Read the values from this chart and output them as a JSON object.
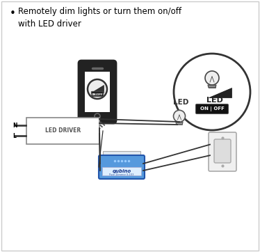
{
  "title_bullet": "•",
  "title_text": "Remotely dim lights or turn them on/off\nwith LED driver",
  "bg_color": "#ffffff",
  "border_color": "#cccccc",
  "text_color": "#222222",
  "led_label": "LED",
  "led_driver_label": "LED DRIVER",
  "on_off_label": "ON | OFF",
  "n_label": "N",
  "l_label": "L",
  "qubino_label": "qubino",
  "qubino_sub": "Push Dimmer S-103",
  "phone_body_color": "#222222",
  "phone_screen_color": "#ffffff",
  "wire_color": "#333333",
  "driver_box_color": "#ffffff",
  "driver_edge_color": "#888888",
  "qubino_face": "#5599dd",
  "qubino_edge": "#2255aa",
  "qubino_top": "#aaccee",
  "switch_face": "#f0f0f0",
  "switch_edge": "#aaaaaa"
}
